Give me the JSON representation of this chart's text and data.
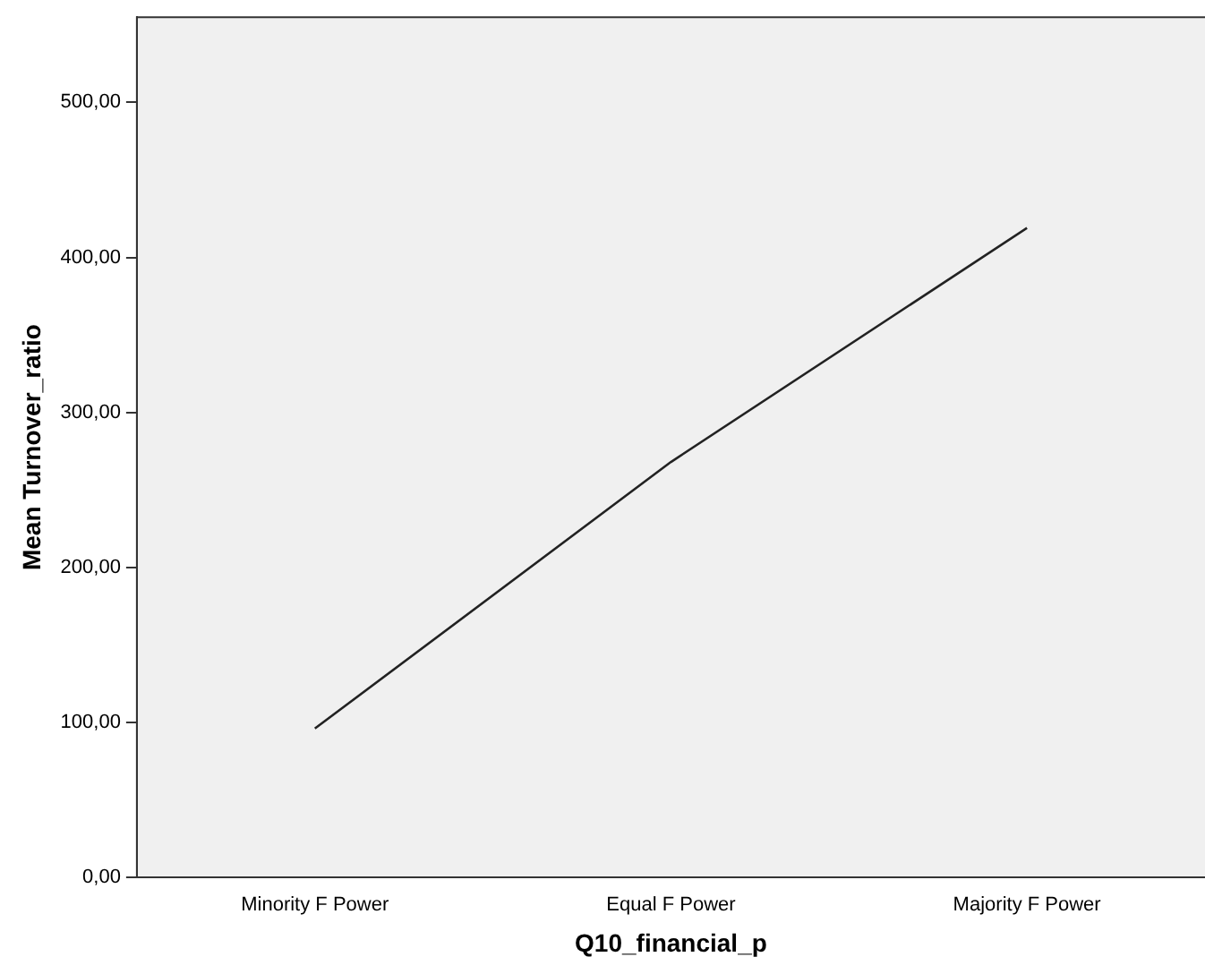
{
  "chart_data": {
    "type": "line",
    "xlabel": "Q10_financial_p",
    "ylabel": "Mean Turnover_ratio",
    "categories": [
      "Minority F Power",
      "Equal F Power",
      "Majority F Power"
    ],
    "series": [
      {
        "color": "#222222",
        "values": [
          96,
          268,
          419
        ]
      }
    ],
    "ylim": [
      0,
      555
    ],
    "yticks": [
      {
        "value": 0,
        "label": "0,00"
      },
      {
        "value": 100,
        "label": "100,00"
      },
      {
        "value": 200,
        "label": "200,00"
      },
      {
        "value": 300,
        "label": "300,00"
      },
      {
        "value": 400,
        "label": "400,00"
      },
      {
        "value": 500,
        "label": "500,00"
      }
    ],
    "grid": false,
    "legend": false,
    "marker": "none",
    "line_style": "solid"
  }
}
